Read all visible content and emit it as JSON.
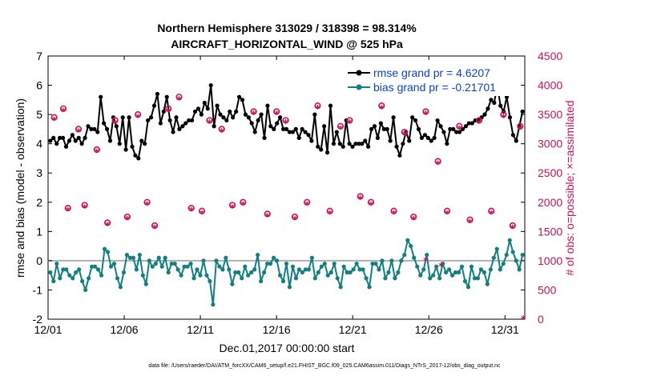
{
  "colors": {
    "rmse": "#000000",
    "bias": "#128080",
    "obs": "#d0105a",
    "legend_text": "#0b3fe0",
    "zero_line": "#b0b0b0"
  },
  "chart_data": {
    "type": "line",
    "title": [
      "Northern Hemisphere 313029 / 318398 = 98.314%",
      "AIRCRAFT_HORIZONTAL_WIND @ 525 hPa"
    ],
    "xlabel": "Dec.01,2017 00:00:00 start",
    "ylabel": "rmse and bias (model - observation)",
    "y2label": "# of obs: o=possible; ×=assimilated",
    "xlim": [
      0,
      31.3
    ],
    "ylim": [
      -2,
      7
    ],
    "y2lim": [
      0,
      4500
    ],
    "xticks": [
      0,
      5,
      10,
      15,
      20,
      25,
      30
    ],
    "xticklabels": [
      "12/01",
      "12/06",
      "12/11",
      "12/16",
      "12/21",
      "12/26",
      "12/31"
    ],
    "yticks": [
      -2,
      -1,
      0,
      1,
      2,
      3,
      4,
      5,
      6,
      7
    ],
    "y2ticks": [
      0,
      500,
      1000,
      1500,
      2000,
      2500,
      3000,
      3500,
      4000,
      4500
    ],
    "series": [
      {
        "name": "rmse grand pr = 4.6207",
        "axis": "left",
        "values": [
          4.1,
          4.2,
          4.0,
          4.2,
          4.2,
          3.9,
          4.1,
          4.3,
          4.1,
          4.2,
          4.0,
          4.2,
          4.6,
          4.5,
          4.5,
          4.4,
          5.6,
          4.7,
          4.5,
          4.1,
          4.9,
          4.6,
          4.0,
          4.9,
          3.8,
          4.9,
          3.9,
          3.6,
          3.5,
          4.1,
          4.0,
          4.8,
          4.9,
          5.3,
          5.7,
          4.7,
          5.1,
          5.6,
          4.8,
          4.4,
          4.9,
          4.5,
          4.6,
          4.7,
          4.8,
          4.8,
          5.1,
          5.2,
          5.0,
          5.4,
          5.2,
          6.0,
          4.6,
          5.3,
          5.0,
          4.9,
          4.8,
          5.1,
          4.9,
          5.1,
          5.6,
          5.5,
          5.0,
          4.9,
          4.7,
          4.4,
          4.8,
          5.0,
          4.2,
          5.3,
          4.6,
          4.5,
          4.7,
          4.9,
          4.5,
          4.5,
          4.4,
          4.4,
          4.5,
          4.2,
          4.5,
          4.4,
          4.3,
          4.1,
          5.0,
          3.9,
          3.8,
          4.6,
          3.7,
          5.3,
          4.0,
          4.4,
          4.0,
          3.9,
          4.8,
          4.0,
          3.9,
          4.0,
          4.0,
          4.0,
          4.1,
          3.9,
          4.5,
          4.6,
          4.2,
          4.7,
          4.5,
          4.5,
          4.1,
          4.9,
          3.9,
          3.6,
          4.0,
          4.4,
          4.1,
          4.9,
          4.8,
          4.5,
          4.2,
          4.3,
          4.2,
          4.1,
          4.2,
          4.8,
          4.6,
          4.4,
          4.0,
          4.5,
          4.5,
          4.4,
          4.4,
          4.5,
          4.6,
          4.7,
          4.7,
          4.8,
          4.8,
          4.9,
          5.0,
          5.2,
          5.5,
          5.4,
          6.0,
          5.3,
          5.1,
          5.6,
          4.9,
          4.3,
          4.1,
          4.6,
          5.1
        ]
      },
      {
        "name": "bias grand pr = -0.21701",
        "axis": "left",
        "values": [
          -0.4,
          -0.7,
          -0.1,
          -0.6,
          -0.3,
          -0.3,
          -0.5,
          -0.6,
          -0.4,
          -0.3,
          -0.7,
          -1.0,
          -0.6,
          -0.2,
          -0.2,
          -0.3,
          -0.5,
          0.4,
          0.3,
          -0.2,
          -0.1,
          -0.6,
          -0.9,
          -0.4,
          0.2,
          0.1,
          0.1,
          -0.3,
          0.2,
          -0.5,
          -0.8,
          0.0,
          -0.2,
          -0.1,
          0.1,
          -0.2,
          0.1,
          -0.4,
          -0.1,
          -0.1,
          -0.3,
          -0.5,
          -0.2,
          -0.2,
          -0.1,
          -0.6,
          -0.3,
          -0.5,
          0.0,
          -0.5,
          -0.7,
          -1.5,
          0.0,
          -0.2,
          -0.3,
          0.1,
          -0.3,
          -0.8,
          -0.4,
          -0.4,
          -0.6,
          -0.2,
          -0.5,
          -0.4,
          -0.3,
          0.2,
          -0.7,
          -0.4,
          -0.1,
          -0.1,
          0.1,
          0.0,
          -0.5,
          -0.7,
          -0.1,
          -0.9,
          -0.2,
          -0.6,
          -0.3,
          -0.4,
          -0.3,
          -0.3,
          0.1,
          -0.6,
          -0.4,
          -0.2,
          -0.1,
          -0.5,
          -0.4,
          -0.1,
          -0.6,
          -0.9,
          -0.2,
          -0.4,
          -0.4,
          -0.3,
          -0.1,
          -0.3,
          -0.3,
          -0.6,
          -0.9,
          -0.1,
          -0.1,
          -0.3,
          0.0,
          -0.6,
          -0.4,
          0.0,
          -0.6,
          -0.4,
          0.0,
          0.2,
          0.7,
          0.5,
          0.1,
          -0.2,
          -0.5,
          -0.3,
          0.2,
          -0.6,
          -0.5,
          -0.2,
          -0.6,
          -0.1,
          -0.4,
          -0.3,
          -0.5,
          -0.4,
          -0.4,
          -0.2,
          -0.7,
          -0.9,
          -0.2,
          -0.6,
          -0.6,
          -0.3,
          -0.4,
          -0.8,
          -0.3,
          0.1,
          0.4,
          -0.3,
          -0.1,
          0.2,
          0.7,
          0.3,
          0.0,
          -0.3,
          0.2
        ]
      }
    ],
    "obs_possible": {
      "axis": "right",
      "marker": "o",
      "x": [
        0.4,
        1.0,
        1.3,
        2.0,
        2.4,
        3.2,
        3.9,
        4.4,
        5.2,
        5.9,
        6.5,
        7.0,
        7.9,
        8.6,
        9.4,
        10.1,
        10.6,
        11.4,
        12.1,
        12.8,
        13.5,
        14.4,
        15.0,
        15.6,
        16.2,
        17.0,
        17.7,
        18.5,
        19.2,
        19.8,
        20.5,
        21.2,
        21.9,
        22.7,
        23.4,
        24.0,
        24.8,
        25.6,
        26.2,
        27.0,
        27.7,
        28.3,
        29.1,
        29.9,
        30.5,
        31.0
      ],
      "values": [
        3450,
        3600,
        1900,
        3250,
        1950,
        2900,
        1650,
        3400,
        1750,
        3500,
        2000,
        1600,
        3600,
        3800,
        1900,
        1850,
        3400,
        3250,
        1950,
        2000,
        3550,
        1800,
        3550,
        3400,
        1750,
        2000,
        3650,
        1850,
        3300,
        3400,
        2100,
        2000,
        3650,
        1850,
        3200,
        1750,
        3550,
        2700,
        1850,
        3300,
        1700,
        3400,
        1850,
        3500,
        1600,
        3300
      ]
    },
    "obs_assimilated": {
      "axis": "right",
      "marker": "×",
      "x": [
        0.4,
        1.0,
        1.3,
        2.0,
        2.4,
        3.2,
        3.9,
        4.4,
        5.2,
        5.9,
        6.5,
        7.0,
        7.9,
        8.6,
        9.4,
        10.1,
        10.6,
        11.4,
        12.1,
        12.8,
        13.5,
        14.4,
        15.0,
        15.6,
        16.2,
        17.0,
        17.7,
        18.5,
        19.2,
        19.8,
        20.5,
        21.2,
        21.9,
        22.7,
        23.4,
        24.0,
        24.8,
        25.6,
        26.2,
        27.0,
        27.7,
        28.3,
        29.1,
        29.9,
        30.5,
        31.0,
        24.8,
        25.8,
        31.2
      ],
      "values": [
        3400,
        3550,
        1850,
        3200,
        1900,
        2850,
        1600,
        3350,
        1700,
        3450,
        1950,
        1550,
        3550,
        3750,
        1850,
        1800,
        3350,
        3200,
        1900,
        1950,
        3500,
        1750,
        3500,
        3350,
        1700,
        1950,
        3600,
        1800,
        3250,
        3350,
        2050,
        1950,
        3600,
        1800,
        3150,
        1700,
        3500,
        2650,
        1800,
        3250,
        1650,
        3350,
        1800,
        3450,
        1550,
        3250,
        1000,
        900,
        0
      ]
    },
    "legend": [
      {
        "label": "rmse grand pr = 4.6207"
      },
      {
        "label": "bias grand pr = -0.21701"
      }
    ],
    "legend_position": "top-right",
    "grid": false
  },
  "footer": "data file: /Users/raeder/DAI/ATM_forcXX/CAM6_setup/f.e21.FHIST_BGC.f09_025.CAM6assim.011/Diags_NTrS_2017-12/obs_diag_output.nc"
}
